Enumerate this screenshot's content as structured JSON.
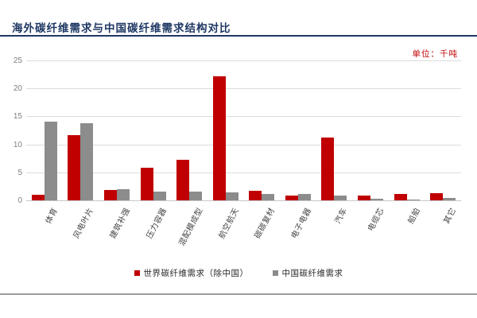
{
  "title": "海外碳纤维需求与中国碳纤维需求结构对比",
  "unit_label": "单位：千吨",
  "colors": {
    "title_navy": "#1f3864",
    "accent_red": "#c00000",
    "bar_gray": "#8c8c8c",
    "gridline": "#dcdcdc",
    "axis_text_gray": "#7f7f7f"
  },
  "chart_data": {
    "type": "bar",
    "title": "海外碳纤维需求与中国碳纤维需求结构对比",
    "unit": "千吨",
    "categories": [
      "体育",
      "风电叶片",
      "建筑补强",
      "压力容器",
      "混配模成型",
      "航空航天",
      "碳碳复材",
      "电子电器",
      "汽车",
      "电缆芯",
      "船舶",
      "其它"
    ],
    "series": [
      {
        "name": "世界碳纤维需求（除中国）",
        "color": "#c00000",
        "values": [
          1.0,
          11.7,
          1.9,
          5.8,
          7.2,
          22.2,
          1.7,
          0.8,
          11.2,
          0.8,
          1.1,
          1.3
        ]
      },
      {
        "name": "中国碳纤维需求",
        "color": "#8c8c8c",
        "values": [
          14.0,
          13.8,
          2.0,
          1.6,
          1.6,
          1.4,
          1.2,
          1.1,
          0.8,
          0.3,
          0.1,
          0.4
        ]
      }
    ],
    "ylim": [
      0,
      25
    ],
    "yticks": [
      0,
      5,
      10,
      15,
      20,
      25
    ],
    "grid": true,
    "legend_position": "bottom"
  }
}
